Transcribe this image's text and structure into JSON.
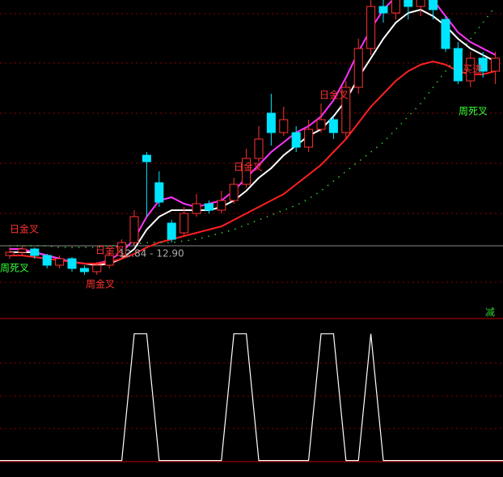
{
  "chart_data": [
    {
      "type": "candlestick",
      "ylim": [
        10.65,
        20.5
      ],
      "up_color": "#ff3232",
      "down_color": "#00e5ff",
      "open": [
        12.6,
        12.7,
        12.8,
        12.6,
        12.3,
        12.5,
        12.2,
        12.1,
        12.3,
        12.6,
        13.0,
        15.7,
        14.85,
        13.6,
        13.3,
        13.9,
        14.2,
        14.0,
        14.3,
        14.8,
        15.6,
        17.0,
        16.4,
        16.4,
        15.95,
        16.5,
        16.8,
        16.4,
        17.8,
        19.0,
        20.3,
        20.1,
        20.6,
        20.3,
        20.6,
        19.9,
        19.0,
        18.0,
        18.7,
        18.3
      ],
      "close": [
        12.7,
        12.8,
        12.6,
        12.3,
        12.5,
        12.2,
        12.1,
        12.3,
        12.6,
        13.0,
        13.8,
        15.5,
        14.25,
        13.1,
        13.9,
        14.2,
        14.0,
        14.3,
        14.8,
        15.6,
        16.2,
        16.4,
        16.8,
        15.95,
        16.5,
        16.8,
        16.4,
        17.8,
        19.0,
        20.3,
        20.1,
        20.6,
        20.3,
        20.6,
        20.2,
        19.0,
        18.0,
        18.7,
        18.3,
        18.7
      ],
      "high": [
        12.85,
        12.9,
        12.85,
        12.65,
        12.6,
        12.55,
        12.3,
        12.4,
        12.7,
        13.1,
        14.0,
        15.8,
        15.2,
        13.7,
        14.1,
        14.5,
        14.3,
        14.6,
        15.0,
        15.9,
        16.6,
        17.6,
        17.2,
        16.6,
        16.8,
        17.3,
        16.9,
        18.0,
        19.3,
        20.6,
        20.6,
        20.8,
        20.8,
        20.8,
        20.8,
        20.0,
        19.2,
        18.9,
        18.9,
        18.9
      ],
      "low": [
        12.5,
        12.6,
        12.5,
        12.2,
        12.2,
        12.1,
        12.0,
        12.0,
        12.2,
        12.5,
        12.9,
        13.8,
        14.1,
        13.0,
        13.2,
        13.8,
        13.9,
        13.9,
        14.2,
        14.7,
        15.5,
        16.0,
        16.3,
        15.8,
        15.8,
        16.4,
        16.2,
        16.2,
        17.6,
        18.8,
        19.8,
        19.9,
        19.9,
        20.0,
        19.9,
        18.9,
        17.9,
        17.8,
        18.1,
        17.9
      ],
      "series": [
        {
          "color": "#ffffff",
          "values": [
            12.7,
            12.7,
            12.7,
            12.6,
            12.5,
            12.4,
            12.35,
            12.3,
            12.35,
            12.5,
            12.8,
            13.4,
            13.8,
            14.0,
            14.0,
            14.0,
            14.0,
            14.1,
            14.3,
            14.6,
            15.0,
            15.3,
            15.7,
            16.0,
            16.3,
            16.5,
            16.9,
            17.4,
            18.1,
            18.7,
            19.3,
            19.8,
            20.1,
            20.2,
            20.0,
            19.7,
            19.3,
            19.0,
            18.8,
            18.6
          ]
        },
        {
          "color": "#ff33ff",
          "values": [
            12.8,
            12.8,
            12.7,
            12.6,
            12.5,
            12.4,
            12.35,
            12.35,
            12.45,
            12.7,
            13.1,
            13.8,
            14.3,
            14.4,
            14.2,
            14.1,
            14.2,
            14.3,
            14.6,
            15.0,
            15.4,
            15.8,
            16.1,
            16.4,
            16.6,
            16.9,
            17.4,
            18.1,
            18.9,
            19.6,
            20.2,
            20.6,
            20.8,
            20.8,
            20.5,
            20.0,
            19.5,
            19.2,
            19.0,
            18.8
          ]
        },
        {
          "color": "#ff2020",
          "values": [
            12.6,
            12.6,
            12.55,
            12.5,
            12.45,
            12.4,
            12.35,
            12.35,
            12.4,
            12.5,
            12.65,
            12.85,
            13.0,
            13.1,
            13.2,
            13.3,
            13.4,
            13.5,
            13.7,
            13.9,
            14.1,
            14.3,
            14.5,
            14.8,
            15.1,
            15.4,
            15.8,
            16.2,
            16.7,
            17.2,
            17.6,
            18.0,
            18.3,
            18.5,
            18.6,
            18.5,
            18.3,
            18.2,
            18.2,
            18.3
          ]
        },
        {
          "color": "#33cc33",
          "dotted": true,
          "values": [
            12.9,
            12.9,
            12.9,
            12.9,
            12.85,
            12.85,
            12.85,
            12.85,
            12.9,
            12.9,
            12.95,
            13.0,
            13.0,
            13.0,
            13.05,
            13.1,
            13.2,
            13.3,
            13.4,
            13.55,
            13.7,
            13.85,
            14.0,
            14.15,
            14.35,
            14.6,
            14.9,
            15.2,
            15.5,
            15.8,
            16.1,
            16.5,
            16.9,
            17.3,
            17.8,
            18.3,
            18.8,
            19.3,
            19.8,
            20.3
          ]
        }
      ],
      "annotations": [
        "日金叉",
        "周死叉",
        "周金叉",
        "日金叉",
        "12.84 - 12.90",
        "日金叉",
        "日金叉",
        "周死叉",
        "买进",
        "减"
      ]
    },
    {
      "type": "line",
      "ylim": [
        -0.13,
        1.12
      ],
      "color": "#ffffff",
      "values": [
        0,
        0,
        0,
        0,
        0,
        0,
        0,
        0,
        0,
        0,
        1,
        1,
        0,
        0,
        0,
        0,
        0,
        0,
        1,
        1,
        0,
        0,
        0,
        0,
        0,
        1,
        1,
        0,
        0,
        1,
        0,
        0,
        0,
        0,
        0,
        0,
        0,
        0,
        0,
        0
      ]
    }
  ]
}
